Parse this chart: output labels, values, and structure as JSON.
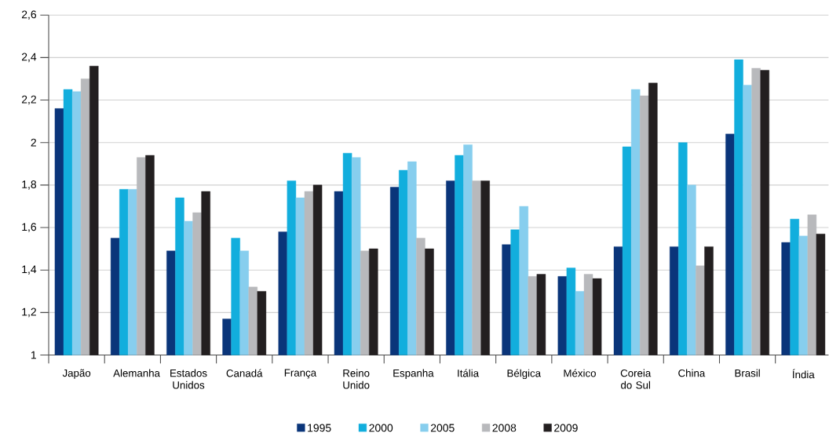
{
  "chart_data": {
    "type": "bar",
    "categories": [
      "Japão",
      "Alemanha",
      "Estados Unidos",
      "Canadá",
      "França",
      "Reino Unido",
      "Espanha",
      "Itália",
      "Bélgica",
      "México",
      "Coreia do Sul",
      "China",
      "Brasil",
      "Índia"
    ],
    "series": [
      {
        "name": "1995",
        "color": "#0a357a",
        "values": [
          2.16,
          1.55,
          1.49,
          1.17,
          1.58,
          1.77,
          1.79,
          1.82,
          1.52,
          1.37,
          1.51,
          1.51,
          2.04,
          1.53
        ]
      },
      {
        "name": "2000",
        "color": "#12aedd",
        "values": [
          2.25,
          1.78,
          1.74,
          1.55,
          1.82,
          1.95,
          1.87,
          1.94,
          1.59,
          1.41,
          1.98,
          2.0,
          2.39,
          1.64
        ]
      },
      {
        "name": "2005",
        "color": "#87ceee",
        "values": [
          2.24,
          1.78,
          1.63,
          1.49,
          1.74,
          1.93,
          1.91,
          1.99,
          1.7,
          1.3,
          2.25,
          1.8,
          2.27,
          1.56
        ]
      },
      {
        "name": "2008",
        "color": "#b8b9bc",
        "values": [
          2.3,
          1.93,
          1.67,
          1.32,
          1.77,
          1.49,
          1.55,
          1.82,
          1.37,
          1.38,
          2.22,
          1.42,
          2.35,
          1.66
        ]
      },
      {
        "name": "2009",
        "color": "#231f20",
        "values": [
          2.36,
          1.94,
          1.77,
          1.3,
          1.8,
          1.5,
          1.5,
          1.82,
          1.38,
          1.36,
          2.28,
          1.51,
          2.34,
          1.57
        ]
      }
    ],
    "ylim": [
      1,
      2.6
    ],
    "yticks": [
      1,
      {
        "value": 1.2,
        "label": "1,2"
      },
      {
        "value": 1.4,
        "label": "1,4"
      },
      {
        "value": 1.6,
        "label": "1,6"
      },
      {
        "value": 1.8,
        "label": "1,8"
      },
      2,
      {
        "value": 2.2,
        "label": "2,2"
      },
      {
        "value": 2.4,
        "label": "2,4"
      },
      {
        "value": 2.6,
        "label": "2,6"
      }
    ],
    "grid": "y",
    "legend": "bottom"
  }
}
